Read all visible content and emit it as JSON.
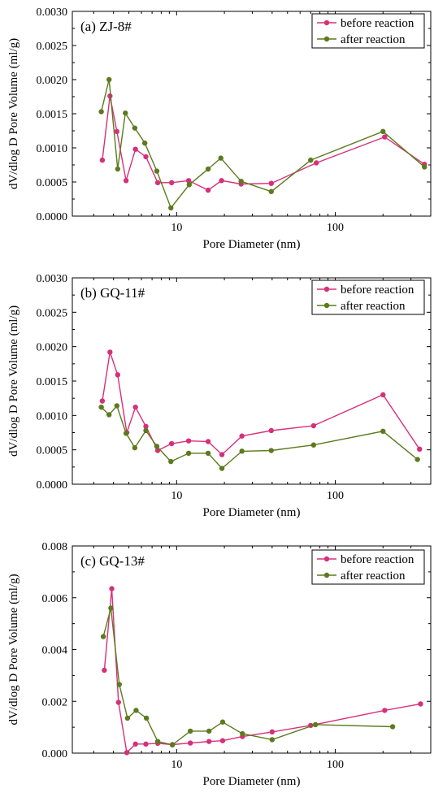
{
  "colors": {
    "before": "#d6307a",
    "after": "#5c7a1e"
  },
  "chart_data": [
    {
      "type": "line",
      "panel_label": "(a) ZJ-8#",
      "xlabel": "Pore Diameter (nm)",
      "ylabel": "dV/dlog D  Pore Volume (ml/g)",
      "xscale": "log",
      "xlim": [
        2.2,
        400
      ],
      "ylim": [
        0,
        0.003
      ],
      "yticks": [
        "0.0000",
        "0.0005",
        "0.0010",
        "0.0015",
        "0.0020",
        "0.0025",
        "0.0030"
      ],
      "ytick_values": [
        0,
        0.0005,
        0.001,
        0.0015,
        0.002,
        0.0025,
        0.003
      ],
      "xticks": [
        "10",
        "100"
      ],
      "xtick_values": [
        10,
        100
      ],
      "legend_position": "top-right",
      "series": [
        {
          "name": "before reaction",
          "color_key": "before",
          "x": [
            3.4,
            3.8,
            4.2,
            4.8,
            5.5,
            6.4,
            7.6,
            9.3,
            11.9,
            15.8,
            19.2,
            25.5,
            39.5,
            76,
            205,
            365
          ],
          "y": [
            0.00082,
            0.00176,
            0.00124,
            0.00052,
            0.00098,
            0.00087,
            0.00049,
            0.00049,
            0.00052,
            0.00038,
            0.00052,
            0.00047,
            0.00048,
            0.00078,
            0.00116,
            0.00076
          ]
        },
        {
          "name": "after reaction",
          "color_key": "after",
          "x": [
            3.35,
            3.75,
            4.25,
            4.75,
            5.45,
            6.3,
            7.5,
            9.2,
            12,
            15.8,
            19,
            25.5,
            39.5,
            70,
            200,
            365
          ],
          "y": [
            0.00153,
            0.002,
            0.00069,
            0.00151,
            0.00129,
            0.00107,
            0.00066,
            0.00012,
            0.00046,
            0.00069,
            0.00085,
            0.00051,
            0.00036,
            0.00082,
            0.00124,
            0.00072
          ]
        }
      ]
    },
    {
      "type": "line",
      "panel_label": "(b) GQ-11#",
      "xlabel": "Pore Diameter (nm)",
      "ylabel": "dV/dlog D  Pore Volume (ml/g)",
      "xscale": "log",
      "xlim": [
        2.2,
        400
      ],
      "ylim": [
        0,
        0.003
      ],
      "yticks": [
        "0.0000",
        "0.0005",
        "0.0010",
        "0.0015",
        "0.0020",
        "0.0025",
        "0.0030"
      ],
      "ytick_values": [
        0,
        0.0005,
        0.001,
        0.0015,
        0.002,
        0.0025,
        0.003
      ],
      "xticks": [
        "10",
        "100"
      ],
      "xtick_values": [
        10,
        100
      ],
      "legend_position": "top-right",
      "series": [
        {
          "name": "before reaction",
          "color_key": "before",
          "x": [
            3.4,
            3.8,
            4.25,
            4.85,
            5.5,
            6.4,
            7.6,
            9.3,
            11.9,
            15.8,
            19.3,
            25.8,
            39.5,
            73,
            200,
            340
          ],
          "y": [
            0.00121,
            0.00192,
            0.00159,
            0.00075,
            0.00112,
            0.00084,
            0.00049,
            0.00059,
            0.00063,
            0.00062,
            0.00043,
            0.0007,
            0.00078,
            0.00085,
            0.0013,
            0.00051
          ]
        },
        {
          "name": "after reaction",
          "color_key": "after",
          "x": [
            3.35,
            3.75,
            4.2,
            4.8,
            5.45,
            6.4,
            7.5,
            9.2,
            11.9,
            15.8,
            19.3,
            25.8,
            39.5,
            73,
            200,
            330
          ],
          "y": [
            0.00112,
            0.00101,
            0.00114,
            0.00074,
            0.00053,
            0.00078,
            0.00055,
            0.00033,
            0.00045,
            0.00045,
            0.00023,
            0.00048,
            0.00049,
            0.00057,
            0.00077,
            0.00036
          ]
        }
      ]
    },
    {
      "type": "line",
      "panel_label": "(c) GQ-13#",
      "xlabel": "Pore Diameter (nm)",
      "ylabel": "dV/dlog D  Pore Volume (ml/g)",
      "xscale": "log",
      "xlim": [
        2.2,
        400
      ],
      "ylim": [
        0,
        0.008
      ],
      "yticks": [
        "0.000",
        "0.002",
        "0.004",
        "0.006",
        "0.008"
      ],
      "ytick_values": [
        0,
        0.002,
        0.004,
        0.006,
        0.008
      ],
      "xticks": [
        "10",
        "100"
      ],
      "xtick_values": [
        10,
        100
      ],
      "legend_position": "top-right",
      "series": [
        {
          "name": "before reaction",
          "color_key": "before",
          "x": [
            3.5,
            3.9,
            4.3,
            4.85,
            5.5,
            6.4,
            7.6,
            9.4,
            12.2,
            16,
            19.5,
            26,
            40,
            70,
            205,
            345
          ],
          "y": [
            0.0032,
            0.00635,
            0.00196,
            2e-05,
            0.00035,
            0.00035,
            0.00038,
            0.00033,
            0.00039,
            0.00045,
            0.00048,
            0.00064,
            0.00082,
            0.00107,
            0.00165,
            0.0019
          ]
        },
        {
          "name": "after reaction",
          "color_key": "after",
          "x": [
            3.45,
            3.85,
            4.35,
            4.9,
            5.55,
            6.45,
            7.6,
            9.4,
            12.2,
            16,
            19.5,
            26,
            40,
            75,
            230
          ],
          "y": [
            0.0045,
            0.0056,
            0.00265,
            0.00135,
            0.00165,
            0.00135,
            0.00045,
            0.00032,
            0.00085,
            0.00085,
            0.0012,
            0.00075,
            0.00052,
            0.0011,
            0.00102
          ]
        }
      ]
    }
  ]
}
